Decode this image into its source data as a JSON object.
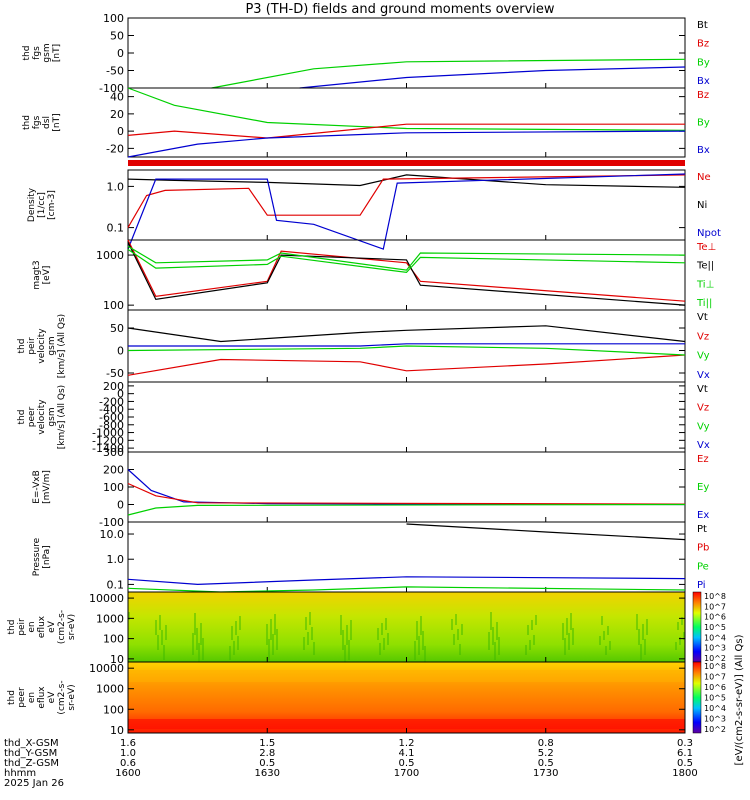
{
  "title": "P3 (TH-D) fields and ground moments overview",
  "colors": {
    "black": "#000000",
    "red": "#e00000",
    "green": "#00d000",
    "blue": "#0000d0"
  },
  "time": {
    "ticks": [
      "1600",
      "1630",
      "1700",
      "1730",
      "1800"
    ],
    "rows": [
      {
        "label": "thd_X-GSM",
        "values": [
          "1.6",
          "1.5",
          "1.2",
          "0.8",
          "0.3"
        ]
      },
      {
        "label": "thd_Y-GSM",
        "values": [
          "1.0",
          "2.8",
          "4.1",
          "5.2",
          "6.1"
        ]
      },
      {
        "label": "thd_Z-GSM",
        "values": [
          "0.6",
          "0.5",
          "0.5",
          "0.5",
          "0.5"
        ]
      },
      {
        "label": "hhmm",
        "values": [
          "1600",
          "1630",
          "1700",
          "1730",
          "1800"
        ]
      }
    ],
    "date": "2025 Jan 26"
  },
  "colorbar": {
    "peir_label": "[eV/(cm2-s-sr-eV)] (All Qs)",
    "peer_label": "[eV/(cm2-s-sr-eV)] (All Qs)",
    "ticks": [
      "10^8",
      "10^7",
      "10^6",
      "10^5",
      "10^4",
      "10^3",
      "10^2"
    ]
  },
  "chart_data": [
    {
      "type": "line",
      "panel": "fgs_gsm_nT",
      "ylabel": [
        "thd",
        "fgs",
        "gsm",
        "[nT]"
      ],
      "ylim": [
        -100,
        100
      ],
      "yticks": [
        "100",
        "50",
        "0",
        "-50",
        "-100"
      ],
      "legend": [
        "Bt",
        "Bz",
        "By",
        "Bx"
      ],
      "series": [
        {
          "name": "By",
          "values": [
            [
              1618,
              -100
            ],
            [
              1640,
              -45
            ],
            [
              1700,
              -25
            ],
            [
              1800,
              -18
            ]
          ]
        },
        {
          "name": "Bx",
          "values": [
            [
              1637,
              -100
            ],
            [
              1700,
              -70
            ],
            [
              1730,
              -50
            ],
            [
              1800,
              -40
            ]
          ]
        }
      ]
    },
    {
      "type": "line",
      "panel": "fgs_dsl_nT",
      "ylabel": [
        "thd",
        "fgs",
        "dsl",
        "[nT]"
      ],
      "ylim": [
        -30,
        50
      ],
      "yticks": [
        "40",
        "20",
        "0",
        "-20"
      ],
      "legend": [
        "Bz",
        "By",
        "Bx"
      ],
      "series": [
        {
          "name": "By",
          "values": [
            [
              1600,
              50
            ],
            [
              1610,
              30
            ],
            [
              1630,
              10
            ],
            [
              1700,
              3
            ],
            [
              1800,
              1
            ]
          ]
        },
        {
          "name": "Bz",
          "values": [
            [
              1600,
              -5
            ],
            [
              1610,
              0
            ],
            [
              1630,
              -8
            ],
            [
              1700,
              8
            ],
            [
              1800,
              8
            ]
          ]
        },
        {
          "name": "Bx",
          "values": [
            [
              1600,
              -30
            ],
            [
              1615,
              -15
            ],
            [
              1630,
              -8
            ],
            [
              1700,
              -2
            ],
            [
              1800,
              0
            ]
          ]
        }
      ]
    },
    {
      "type": "line",
      "panel": "density",
      "ylabel": [
        "Density",
        "[1/cc]",
        "[cm-3]"
      ],
      "yscale": "log",
      "ylim": [
        0.05,
        2.5
      ],
      "yticks": [
        "1.0",
        "0.1"
      ],
      "legend": [
        "Ne",
        "Ni",
        "Npot"
      ],
      "series": [
        {
          "name": "Ni",
          "values": [
            [
              1600,
              1.5
            ],
            [
              1610,
              1.4
            ],
            [
              1630,
              1.25
            ],
            [
              1650,
              1.05
            ],
            [
              1700,
              1.9
            ],
            [
              1730,
              1.1
            ],
            [
              1800,
              0.95
            ]
          ]
        },
        {
          "name": "Ne",
          "values": [
            [
              1600,
              0.1
            ],
            [
              1604,
              0.6
            ],
            [
              1608,
              0.8
            ],
            [
              1626,
              0.9
            ],
            [
              1630,
              0.2
            ],
            [
              1650,
              0.2
            ],
            [
              1655,
              1.5
            ],
            [
              1800,
              1.9
            ]
          ]
        },
        {
          "name": "Npot",
          "values": [
            [
              1600,
              0.03
            ],
            [
              1606,
              1.5
            ],
            [
              1630,
              1.5
            ],
            [
              1632,
              0.15
            ],
            [
              1640,
              0.12
            ],
            [
              1655,
              0.03
            ],
            [
              1658,
              1.2
            ],
            [
              1800,
              2.0
            ]
          ]
        }
      ]
    },
    {
      "type": "line",
      "panel": "temperature",
      "ylabel": [
        "magt3",
        "[eV]"
      ],
      "yscale": "log",
      "ylim": [
        80,
        2000
      ],
      "yticks": [
        "1000",
        "100"
      ],
      "legend": [
        "Te⊥",
        "Te||",
        "Ti⊥",
        "Ti||"
      ],
      "series": [
        {
          "name": "Te⊥",
          "values": [
            [
              1600,
              2000
            ],
            [
              1606,
              150
            ],
            [
              1630,
              300
            ],
            [
              1633,
              1200
            ],
            [
              1700,
              700
            ],
            [
              1703,
              300
            ],
            [
              1800,
              120
            ]
          ]
        },
        {
          "name": "Te||",
          "values": [
            [
              1600,
              1800
            ],
            [
              1606,
              130
            ],
            [
              1630,
              280
            ],
            [
              1633,
              1000
            ],
            [
              1700,
              800
            ],
            [
              1703,
              250
            ],
            [
              1800,
              100
            ]
          ]
        },
        {
          "name": "Ti⊥",
          "values": [
            [
              1600,
              1500
            ],
            [
              1606,
              700
            ],
            [
              1630,
              800
            ],
            [
              1633,
              1100
            ],
            [
              1700,
              500
            ],
            [
              1703,
              1100
            ],
            [
              1800,
              1000
            ]
          ]
        },
        {
          "name": "Ti||",
          "values": [
            [
              1600,
              1300
            ],
            [
              1606,
              550
            ],
            [
              1630,
              650
            ],
            [
              1633,
              950
            ],
            [
              1700,
              450
            ],
            [
              1703,
              900
            ],
            [
              1800,
              700
            ]
          ]
        }
      ]
    },
    {
      "type": "line",
      "panel": "peir_velocity",
      "ylabel": [
        "thd",
        "peir",
        "velocity",
        "gsm",
        "[km/s] (All Qs)"
      ],
      "ylim": [
        -70,
        90
      ],
      "yticks": [
        "50",
        "0",
        "-50"
      ],
      "legend": [
        "Vt",
        "Vz",
        "Vy",
        "Vx"
      ],
      "series": [
        {
          "name": "Vt",
          "values": [
            [
              1600,
              50
            ],
            [
              1620,
              20
            ],
            [
              1650,
              40
            ],
            [
              1700,
              45
            ],
            [
              1730,
              55
            ],
            [
              1800,
              20
            ]
          ]
        },
        {
          "name": "Vz",
          "values": [
            [
              1600,
              -55
            ],
            [
              1620,
              -20
            ],
            [
              1650,
              -25
            ],
            [
              1700,
              -45
            ],
            [
              1730,
              -30
            ],
            [
              1800,
              -10
            ]
          ]
        },
        {
          "name": "Vy",
          "values": [
            [
              1600,
              0
            ],
            [
              1650,
              5
            ],
            [
              1700,
              10
            ],
            [
              1730,
              5
            ],
            [
              1800,
              -10
            ]
          ]
        },
        {
          "name": "Vx",
          "values": [
            [
              1600,
              10
            ],
            [
              1650,
              10
            ],
            [
              1700,
              15
            ],
            [
              1800,
              15
            ]
          ]
        }
      ]
    },
    {
      "type": "line",
      "panel": "peer_velocity",
      "ylabel": [
        "thd",
        "peer",
        "velocity",
        "gsm",
        "[km/s] (All Qs)"
      ],
      "ylim": [
        -1500,
        300
      ],
      "yticks": [
        "200",
        "0",
        "-200",
        "-400",
        "-600",
        "-800",
        "-1000",
        "-1200",
        "-1400"
      ],
      "legend": [
        "Vt",
        "Vz",
        "Vy",
        "Vx"
      ],
      "series": []
    },
    {
      "type": "line",
      "panel": "efield",
      "ylabel": [
        "E=-VxB",
        "[mV/m]"
      ],
      "ylim": [
        -100,
        300
      ],
      "yticks": [
        "300",
        "200",
        "100",
        "0",
        "-100"
      ],
      "legend": [
        "Ez",
        "Ey",
        "Ex"
      ],
      "series": [
        {
          "name": "Ex",
          "values": [
            [
              1600,
              200
            ],
            [
              1605,
              80
            ],
            [
              1612,
              15
            ],
            [
              1630,
              5
            ],
            [
              1800,
              0
            ]
          ]
        },
        {
          "name": "Ez",
          "values": [
            [
              1600,
              120
            ],
            [
              1606,
              50
            ],
            [
              1615,
              10
            ],
            [
              1800,
              2
            ]
          ]
        },
        {
          "name": "Ey",
          "values": [
            [
              1600,
              -60
            ],
            [
              1606,
              -20
            ],
            [
              1615,
              -5
            ],
            [
              1800,
              0
            ]
          ]
        }
      ]
    },
    {
      "type": "line",
      "panel": "pressure",
      "ylabel": [
        "Pressure",
        "[nPa]"
      ],
      "yscale": "log",
      "ylim": [
        0.05,
        30
      ],
      "yticks": [
        "10.0",
        "1.0",
        "0.1"
      ],
      "legend": [
        "Pt",
        "Pb",
        "Pe",
        "Pi"
      ],
      "series": [
        {
          "name": "Pt",
          "values": [
            [
              1700,
              25
            ],
            [
              1730,
              12
            ],
            [
              1800,
              6
            ]
          ]
        },
        {
          "name": "Pi",
          "values": [
            [
              1600,
              0.16
            ],
            [
              1615,
              0.1
            ],
            [
              1640,
              0.15
            ],
            [
              1700,
              0.2
            ],
            [
              1800,
              0.17
            ]
          ]
        },
        {
          "name": "Pe",
          "values": [
            [
              1600,
              0.07
            ],
            [
              1620,
              0.05
            ],
            [
              1640,
              0.06
            ],
            [
              1700,
              0.08
            ],
            [
              1800,
              0.06
            ]
          ]
        }
      ]
    },
    {
      "type": "heatmap",
      "panel": "peir_spectrum",
      "ylabel": [
        "thd",
        "peir",
        "en",
        "eflux",
        "eV",
        "(cm2-s-",
        "sr-eV)"
      ],
      "yscale": "log",
      "ylim": [
        7,
        20000
      ],
      "yticks": [
        "10000",
        "1000",
        "100",
        "10"
      ]
    },
    {
      "type": "heatmap",
      "panel": "peer_spectrum",
      "ylabel": [
        "thd",
        "peer",
        "en",
        "eflux",
        "eV",
        "(cm2-s-",
        "sr-eV)"
      ],
      "yscale": "log",
      "ylim": [
        7,
        20000
      ],
      "yticks": [
        "10000",
        "1000",
        "100",
        "10"
      ]
    }
  ]
}
